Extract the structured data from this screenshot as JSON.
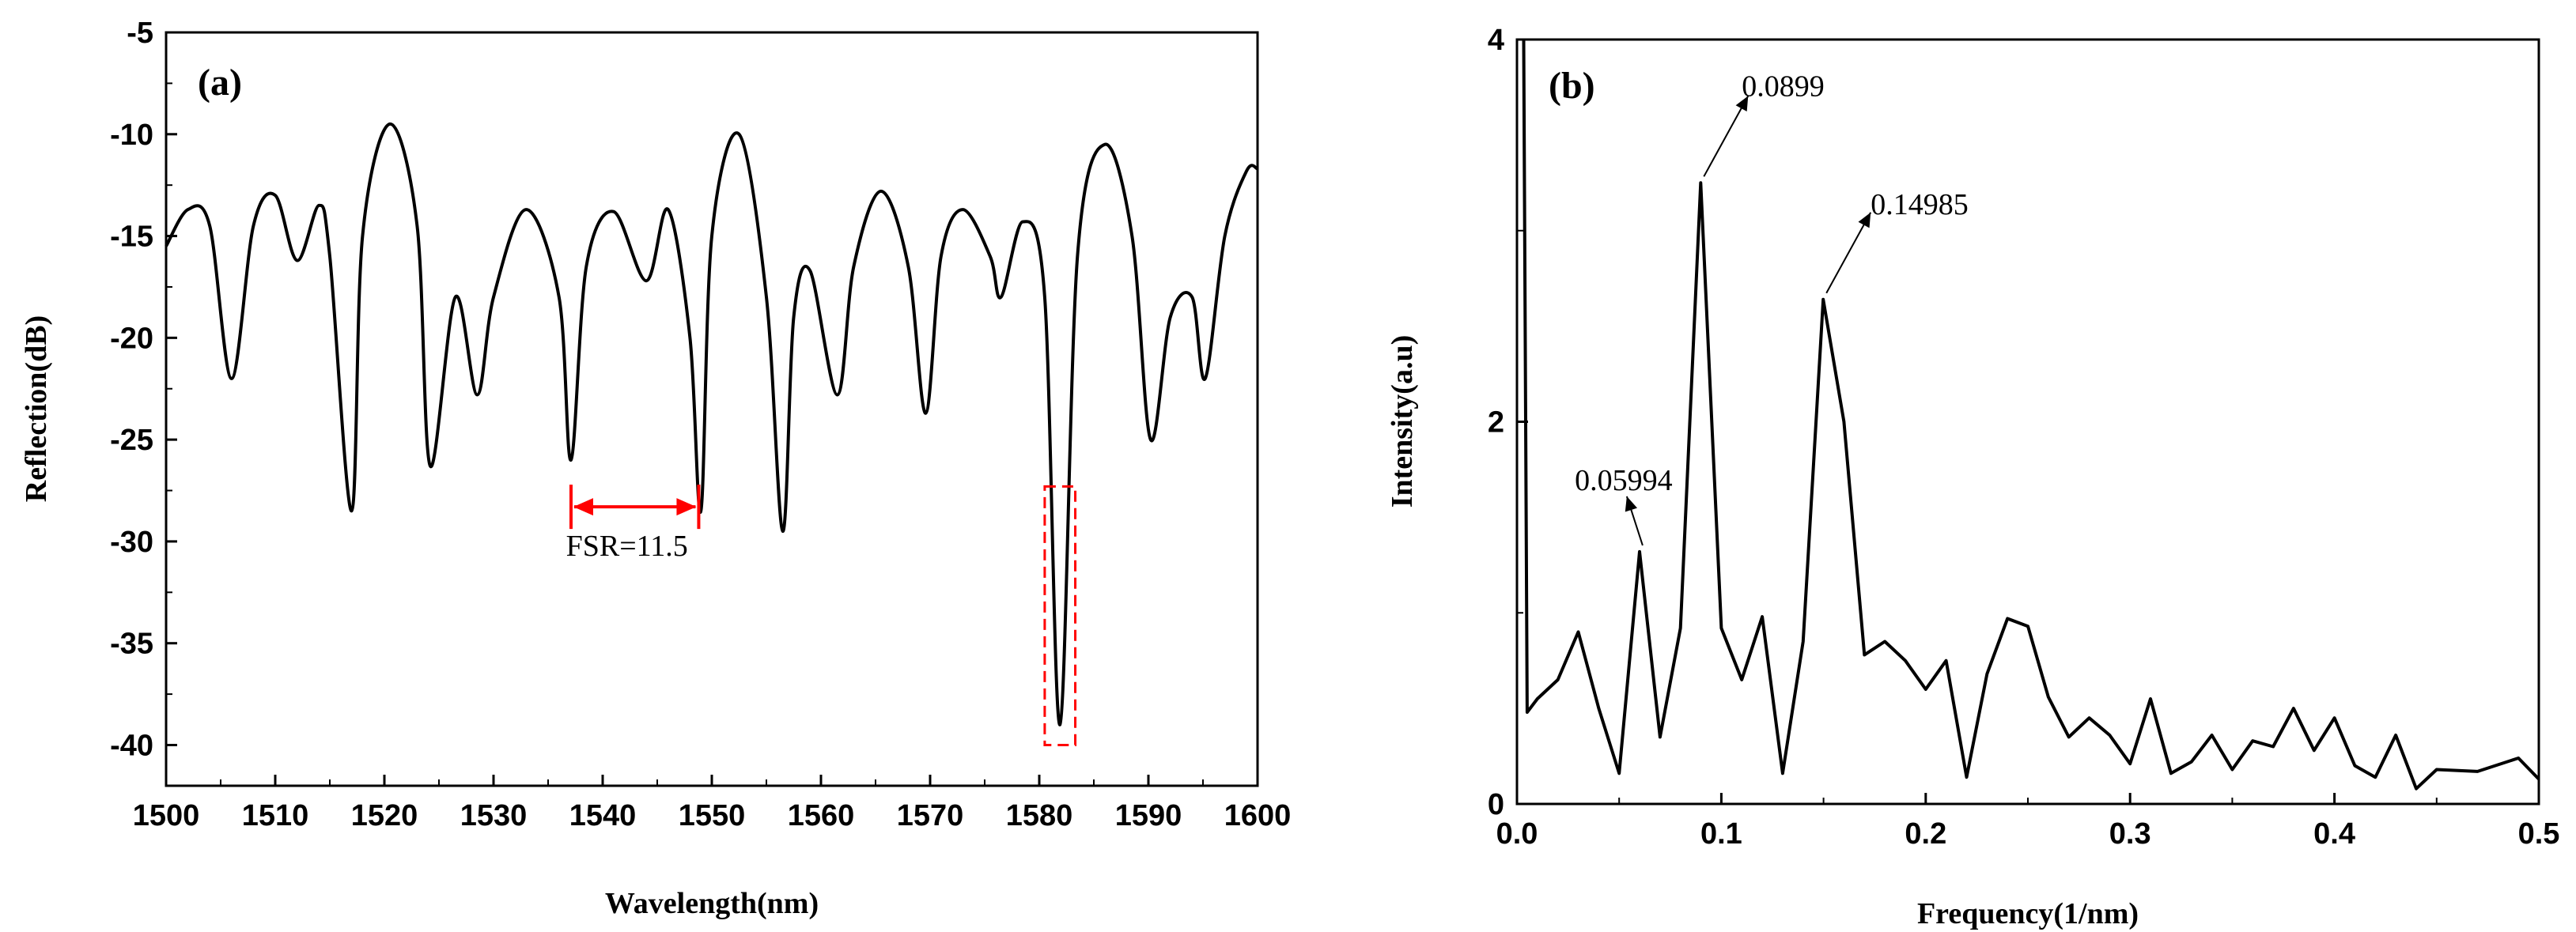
{
  "chart_data": [
    {
      "type": "line",
      "panel_label": "(a)",
      "xlabel": "Wavelength(nm)",
      "ylabel": "Reflection(dB)",
      "xlim": [
        1500,
        1600
      ],
      "ylim": [
        -42,
        -5
      ],
      "xticks": [
        1500,
        1510,
        1520,
        1530,
        1540,
        1550,
        1560,
        1570,
        1580,
        1590,
        1600
      ],
      "yticks": [
        -5,
        -10,
        -15,
        -20,
        -25,
        -30,
        -35,
        -40
      ],
      "series": [
        {
          "name": "Reflection spectrum",
          "color": "#000000",
          "x": [
            1500,
            1502,
            1504,
            1506,
            1508,
            1510,
            1512,
            1514,
            1515,
            1517,
            1518,
            1520.5,
            1523,
            1524.2,
            1526.5,
            1528.5,
            1530,
            1533,
            1536,
            1537.1,
            1538.5,
            1541,
            1544,
            1546,
            1548,
            1549,
            1550,
            1552.5,
            1555,
            1556.5,
            1557.5,
            1559,
            1561.5,
            1563,
            1565.5,
            1568,
            1569.6,
            1571,
            1573,
            1575.5,
            1576.5,
            1578.5,
            1580.5,
            1581.9,
            1583.5,
            1586,
            1588.5,
            1590.2,
            1592,
            1594,
            1595.2,
            1597,
            1599,
            1600
          ],
          "values": [
            -15.5,
            -13.7,
            -14.5,
            -22.0,
            -14.5,
            -13.0,
            -16.2,
            -13.5,
            -16.0,
            -28.5,
            -15.0,
            -9.5,
            -14.5,
            -26.3,
            -18.0,
            -22.8,
            -18.0,
            -13.7,
            -18.0,
            -26.0,
            -16.5,
            -13.8,
            -17.2,
            -13.7,
            -20.0,
            -28.5,
            -15.0,
            -10.0,
            -18.0,
            -29.5,
            -19.0,
            -16.7,
            -22.8,
            -16.5,
            -12.8,
            -16.5,
            -23.7,
            -16.0,
            -13.7,
            -16.0,
            -18.0,
            -14.3,
            -18.0,
            -39.0,
            -16.0,
            -10.5,
            -15.0,
            -25.0,
            -19.0,
            -18.0,
            -22.0,
            -15.0,
            -11.8,
            -11.7
          ]
        }
      ],
      "annotations": [
        {
          "text": "FSR=11.5",
          "x_from": 1537.1,
          "x_to": 1548.8,
          "y": -28.3,
          "color": "#ff0000"
        }
      ],
      "highlight_box": {
        "x_range": [
          1580.5,
          1583.3
        ],
        "y_range": [
          -40.0,
          -27.3
        ],
        "color": "#ff0000",
        "style": "dashed"
      }
    },
    {
      "type": "line",
      "panel_label": "(b)",
      "xlabel": "Frequency(1/nm)",
      "ylabel": "Intensity(a.u)",
      "xlim": [
        0.0,
        0.5
      ],
      "ylim": [
        0,
        4
      ],
      "xticks": [
        0.0,
        0.1,
        0.2,
        0.3,
        0.4,
        0.5
      ],
      "xtick_labels": [
        "0.0",
        "0.1",
        "0.2",
        "0.3",
        "0.4",
        "0.5"
      ],
      "yticks": [
        0,
        2,
        4
      ],
      "series": [
        {
          "name": "FFT spectrum",
          "color": "#000000",
          "x": [
            0.0033,
            0.005,
            0.01,
            0.02,
            0.03,
            0.04,
            0.05,
            0.06,
            0.07,
            0.08,
            0.0899,
            0.1,
            0.11,
            0.12,
            0.13,
            0.14,
            0.14985,
            0.16,
            0.17,
            0.18,
            0.19,
            0.2,
            0.21,
            0.22,
            0.23,
            0.24,
            0.25,
            0.26,
            0.27,
            0.28,
            0.29,
            0.3,
            0.31,
            0.32,
            0.33,
            0.34,
            0.35,
            0.36,
            0.37,
            0.38,
            0.39,
            0.4,
            0.41,
            0.42,
            0.43,
            0.44,
            0.45,
            0.47,
            0.49,
            0.5
          ],
          "values": [
            4.0,
            0.48,
            0.55,
            0.65,
            0.9,
            0.5,
            0.16,
            1.32,
            0.35,
            0.92,
            3.25,
            0.92,
            0.65,
            0.98,
            0.16,
            0.85,
            2.64,
            2.0,
            0.78,
            0.85,
            0.75,
            0.6,
            0.75,
            0.14,
            0.68,
            0.97,
            0.93,
            0.56,
            0.35,
            0.45,
            0.36,
            0.21,
            0.55,
            0.16,
            0.22,
            0.36,
            0.18,
            0.33,
            0.3,
            0.5,
            0.28,
            0.45,
            0.2,
            0.14,
            0.36,
            0.08,
            0.18,
            0.17,
            0.24,
            0.13
          ]
        }
      ],
      "annotations": [
        {
          "text": "0.0899",
          "x": 0.0899,
          "y": 3.25
        },
        {
          "text": "0.14985",
          "x": 0.14985,
          "y": 2.64
        },
        {
          "text": "0.05994",
          "x": 0.05994,
          "y": 1.32
        }
      ]
    }
  ]
}
